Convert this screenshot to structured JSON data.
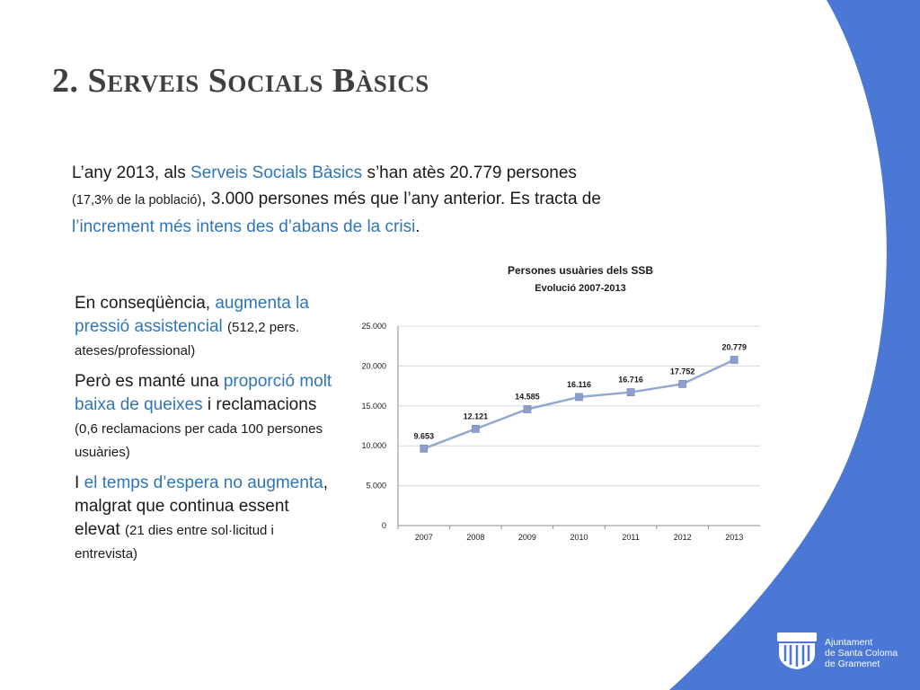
{
  "slide": {
    "title": "2. Serveis Socials Bàsics",
    "accent_color": "#4a78d4",
    "highlight_color": "#2f76b6"
  },
  "intro": {
    "p1": "L’any 2013, als ",
    "p2": "Serveis Socials Bàsics",
    "p3": " s’han atès 20.779 persones ",
    "p4": "(17,3% de la població)",
    "p5": ", 3.000 persones més que l’any anterior. Es tracta de ",
    "p6": "l’increment més intens des d’abans de la crisi",
    "p7": "."
  },
  "bullets": [
    {
      "a": "En conseqüència, ",
      "b": "augmenta la pressió assistencial",
      "c": " ",
      "d": "(512,2 pers. ateses/professional)"
    },
    {
      "a": "Però es manté una ",
      "b": "proporció molt baixa de queixes",
      "c": " i reclamacions ",
      "d": "(0,6 reclamacions per cada 100 persones usuàries)"
    },
    {
      "a": "I ",
      "b": "el temps d’espera no augmenta",
      "c": ", malgrat que continua essent elevat ",
      "d": "(21 dies entre sol·licitud i entrevista)"
    }
  ],
  "logo": {
    "line1": "Ajuntament",
    "line2": "de Santa Coloma",
    "line3": "de Gramenet"
  },
  "chart_data": {
    "type": "line",
    "title": "Persones usuàries dels SSB",
    "subtitle": "Evolució 2007-2013",
    "categories": [
      "2007",
      "2008",
      "2009",
      "2010",
      "2011",
      "2012",
      "2013"
    ],
    "values": [
      9653,
      12121,
      14585,
      16116,
      16716,
      17752,
      20779
    ],
    "data_labels": [
      "9.653",
      "12.121",
      "14.585",
      "16.116",
      "16.716",
      "17.752",
      "20.779"
    ],
    "ylim": [
      0,
      25000
    ],
    "yticks": [
      0,
      5000,
      10000,
      15000,
      20000,
      25000
    ],
    "ytick_labels": [
      "0",
      "5.000",
      "10.000",
      "15.000",
      "20.000",
      "25.000"
    ],
    "xlabel": "",
    "ylabel": "",
    "grid": true,
    "legend": "none",
    "line_color": "#95a8cf",
    "marker_color": "#8da0cd"
  }
}
